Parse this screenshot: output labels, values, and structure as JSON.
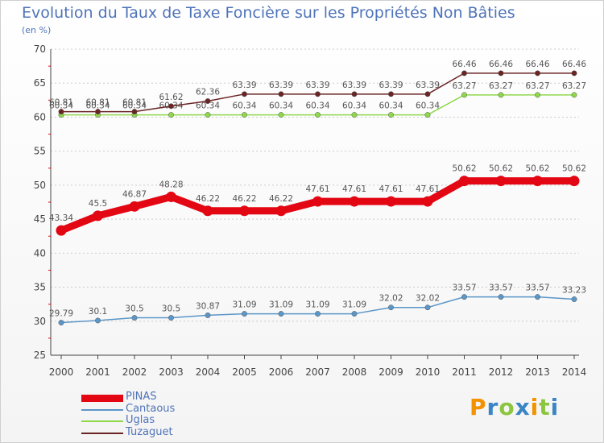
{
  "chart_data": {
    "type": "line",
    "title": "Evolution du Taux de Taxe Foncière sur les Propriétés Non Bâties",
    "subtitle": "(en %)",
    "x": [
      "2000",
      "2001",
      "2002",
      "2003",
      "2004",
      "2005",
      "2006",
      "2007",
      "2008",
      "2009",
      "2010",
      "2011",
      "2012",
      "2013",
      "2014"
    ],
    "ylim": [
      25,
      70
    ],
    "yticks": [
      "25",
      "30",
      "35",
      "40",
      "45",
      "50",
      "55",
      "60",
      "65",
      "70"
    ],
    "series": [
      {
        "name": "PINAS",
        "color": "#e30613",
        "labels": [
          "43.34",
          "45.5",
          "46.87",
          "48.28",
          "46.22",
          "46.22",
          "46.22",
          "47.61",
          "47.61",
          "47.61",
          "47.61",
          "50.62",
          "50.62",
          "50.62",
          "50.62"
        ]
      },
      {
        "name": "Cantaous",
        "color": "#5b96c8",
        "labels": [
          "29.79",
          "30.1",
          "30.5",
          "30.5",
          "30.87",
          "31.09",
          "31.09",
          "31.09",
          "31.09",
          "32.02",
          "32.02",
          "33.57",
          "33.57",
          "33.57",
          "33.23"
        ]
      },
      {
        "name": "Uglas",
        "color": "#8fd84c",
        "labels": [
          "60.34",
          "60.34",
          "60.34",
          "60.34",
          "60.34",
          "60.34",
          "60.34",
          "60.34",
          "60.34",
          "60.34",
          "60.34",
          "63.27",
          "63.27",
          "63.27",
          "63.27"
        ]
      },
      {
        "name": "Tuzaguet",
        "color": "#6b2424",
        "labels": [
          "60.81",
          "60.81",
          "60.81",
          "61.62",
          "62.36",
          "63.39",
          "63.39",
          "63.39",
          "63.39",
          "63.39",
          "63.39",
          "66.46",
          "66.46",
          "66.46",
          "66.46"
        ]
      }
    ]
  },
  "logo": {
    "letters": [
      "P",
      "r",
      "o",
      "x",
      "i",
      "t",
      "i"
    ],
    "colors": [
      "#f39200",
      "#3a85c5",
      "#8cc63f",
      "#3a85c5",
      "#f39200",
      "#8cc63f",
      "#3a85c5"
    ]
  }
}
